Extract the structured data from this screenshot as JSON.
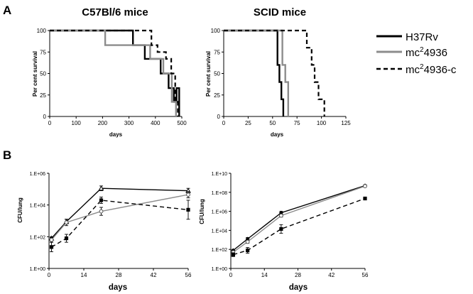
{
  "panels": {
    "a": "A",
    "b": "B"
  },
  "colors": {
    "black": "#000000",
    "gray": "#8c8c8c"
  },
  "legend": {
    "entries": [
      {
        "text": "H37Rv",
        "sup": "",
        "tail": "",
        "style": "solid",
        "color": "#000000"
      },
      {
        "text": "mc",
        "sup": "2",
        "tail": "4936",
        "style": "solid",
        "color": "#8c8c8c"
      },
      {
        "text": "mc",
        "sup": "2",
        "tail": "4936-c",
        "style": "dashed",
        "color": "#000000"
      }
    ]
  },
  "chart_data": [
    {
      "id": "survival-c57",
      "type": "line",
      "title": "C57Bl/6 mice",
      "xlabel": "days",
      "ylabel": "Per cent survival",
      "xlim": [
        0,
        500
      ],
      "ylim": [
        0,
        100
      ],
      "xticks": [
        0,
        100,
        200,
        300,
        400,
        500
      ],
      "yticks": [
        0,
        25,
        50,
        75,
        100
      ],
      "series": [
        {
          "name": "H37Rv",
          "style": "solid",
          "color": "#000000",
          "x": [
            0,
            315,
            315,
            360,
            360,
            420,
            420,
            450,
            450,
            470,
            470,
            480,
            480,
            490,
            490
          ],
          "y": [
            100,
            100,
            83,
            83,
            67,
            67,
            50,
            50,
            33,
            33,
            17,
            17,
            33,
            33,
            0
          ]
        },
        {
          "name": "mc24936",
          "style": "solid",
          "color": "#8c8c8c",
          "x": [
            0,
            210,
            210,
            380,
            380,
            430,
            430,
            462,
            462,
            478,
            478
          ],
          "y": [
            100,
            100,
            83,
            83,
            67,
            67,
            50,
            50,
            17,
            17,
            0
          ]
        },
        {
          "name": "mc24936-c",
          "style": "dashed",
          "color": "#000000",
          "x": [
            0,
            385,
            385,
            408,
            408,
            440,
            440,
            460,
            460,
            475,
            475,
            485,
            485
          ],
          "y": [
            100,
            100,
            83,
            83,
            75,
            75,
            67,
            67,
            50,
            50,
            17,
            17,
            0
          ]
        }
      ]
    },
    {
      "id": "survival-scid",
      "type": "line",
      "title": "SCID mice",
      "xlabel": "days",
      "ylabel": "Per cent survival",
      "xlim": [
        0,
        125
      ],
      "ylim": [
        0,
        100
      ],
      "xticks": [
        0,
        25,
        50,
        75,
        100,
        125
      ],
      "yticks": [
        0,
        25,
        50,
        75,
        100
      ],
      "series": [
        {
          "name": "H37Rv",
          "style": "solid",
          "color": "#000000",
          "x": [
            0,
            55,
            55,
            57,
            57,
            59,
            59,
            61,
            61
          ],
          "y": [
            100,
            100,
            60,
            60,
            40,
            40,
            20,
            20,
            0
          ]
        },
        {
          "name": "mc24936",
          "style": "solid",
          "color": "#8c8c8c",
          "x": [
            0,
            60,
            60,
            63,
            63,
            66,
            66
          ],
          "y": [
            100,
            100,
            60,
            60,
            40,
            40,
            0
          ]
        },
        {
          "name": "mc24936-c",
          "style": "dashed",
          "color": "#000000",
          "x": [
            0,
            85,
            85,
            90,
            90,
            93,
            93,
            97,
            97,
            103,
            103
          ],
          "y": [
            100,
            100,
            80,
            80,
            60,
            60,
            40,
            40,
            20,
            20,
            0
          ]
        }
      ]
    },
    {
      "id": "cfu-c57",
      "type": "line",
      "xlabel": "days",
      "ylabel": "CFU/lung",
      "xlim": [
        0,
        56
      ],
      "ylim": [
        0,
        6
      ],
      "xticks": [
        0,
        14,
        28,
        42,
        56
      ],
      "ytick_values": [
        0,
        2,
        4,
        6
      ],
      "ytick_labels": [
        "1.E+00",
        "1.E+02",
        "1.E+04",
        "1.E+06"
      ],
      "series": [
        {
          "name": "H37Rv",
          "style": "solid",
          "color": "#000000",
          "marker": "triangle",
          "x": [
            1,
            7,
            21,
            56
          ],
          "y": [
            1.9,
            2.95,
            5.05,
            4.9
          ],
          "err": [
            0.1,
            0.15,
            0.15,
            0.15
          ]
        },
        {
          "name": "mc24936",
          "style": "solid",
          "color": "#8c8c8c",
          "marker": "circle",
          "x": [
            1,
            7,
            21,
            56
          ],
          "y": [
            1.8,
            2.9,
            3.6,
            4.65
          ],
          "err": [
            0.15,
            0.2,
            0.25,
            0.2
          ]
        },
        {
          "name": "mc24936-c",
          "style": "dashed",
          "color": "#000000",
          "marker": "square",
          "x": [
            1,
            7,
            21,
            56
          ],
          "y": [
            1.35,
            1.9,
            4.3,
            3.7
          ],
          "err": [
            0.3,
            0.25,
            0.2,
            0.6
          ]
        }
      ]
    },
    {
      "id": "cfu-scid",
      "type": "line",
      "xlabel": "days",
      "ylabel": "CFU/lung",
      "xlim": [
        0,
        56
      ],
      "ylim": [
        0,
        10
      ],
      "xticks": [
        0,
        14,
        28,
        42,
        56
      ],
      "ytick_values": [
        0,
        2,
        4,
        6,
        8,
        10
      ],
      "ytick_labels": [
        "1.E+00",
        "1.E+02",
        "1.E+04",
        "1.E+06",
        "1.E+08",
        "1.E+10"
      ],
      "series": [
        {
          "name": "H37Rv",
          "style": "solid",
          "color": "#000000",
          "marker": "diamond",
          "x": [
            1,
            7,
            21,
            56
          ],
          "y": [
            1.9,
            3.1,
            5.85,
            8.7
          ],
          "err": [
            0.1,
            0.15,
            0.15,
            0.1
          ]
        },
        {
          "name": "mc24936",
          "style": "solid",
          "color": "#8c8c8c",
          "marker": "circle",
          "x": [
            1,
            7,
            21,
            56
          ],
          "y": [
            1.7,
            2.8,
            5.55,
            8.65
          ],
          "err": [
            0.15,
            0.15,
            0.15,
            0.1
          ]
        },
        {
          "name": "mc24936-c",
          "style": "dashed",
          "color": "#000000",
          "marker": "square",
          "x": [
            1,
            7,
            21,
            56
          ],
          "y": [
            1.45,
            1.9,
            4.15,
            7.35
          ],
          "err": [
            0.2,
            0.3,
            0.45,
            0.1
          ]
        }
      ]
    }
  ]
}
